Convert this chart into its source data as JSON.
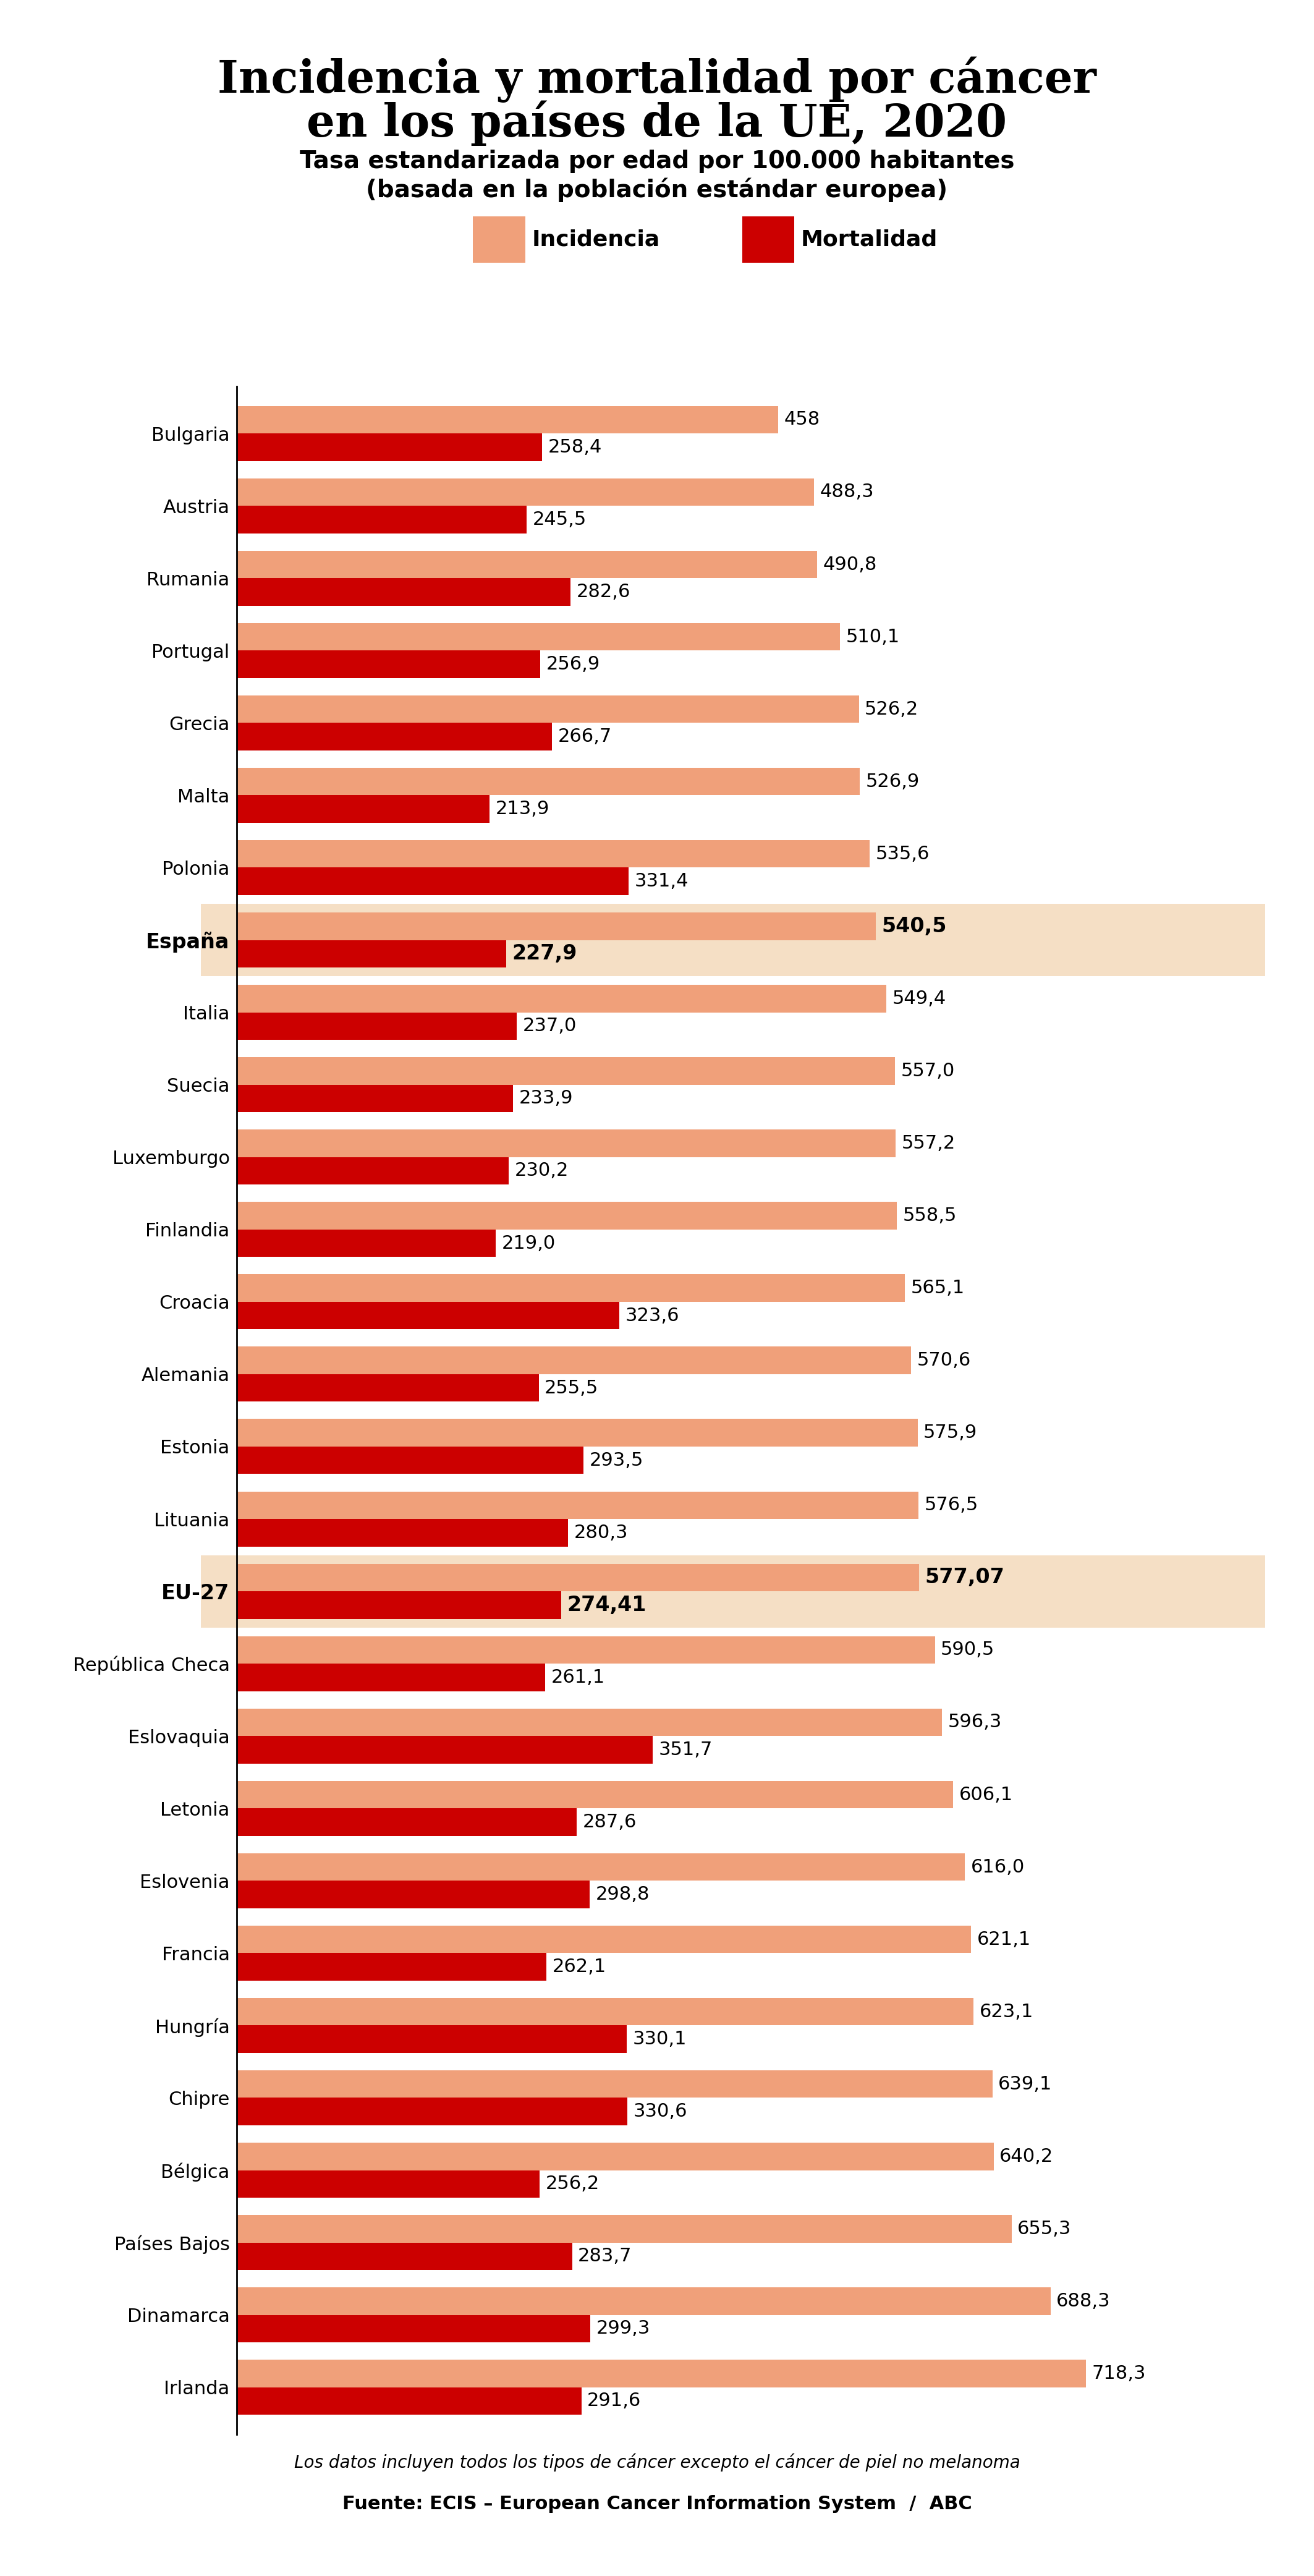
{
  "title_line1": "Incidencia y mortalidad por cáncer",
  "title_line2": "en los países de la UE, 2020",
  "subtitle_line1": "Tasa estandarizada por edad por 100.000 habitantes",
  "subtitle_line2": "(basada en la población estándar europea)",
  "legend_incidencia": "Incidencia",
  "legend_mortalidad": "Mortalidad",
  "footnote": "Los datos incluyen todos los tipos de cáncer excepto el cáncer de piel no melanoma",
  "source_bold": "Fuente:",
  "source_normal": " ECIS – European Cancer Information System  /  ",
  "source_bold2": "ABC",
  "countries": [
    "Bulgaria",
    "Austria",
    "Rumania",
    "Portugal",
    "Grecia",
    "Malta",
    "Polonia",
    "España",
    "Italia",
    "Suecia",
    "Luxemburgo",
    "Finlandia",
    "Croacia",
    "Alemania",
    "Estonia",
    "Lituania",
    "EU-27",
    "República Checa",
    "Eslovaquia",
    "Letonia",
    "Eslovenia",
    "Francia",
    "Hungría",
    "Chipre",
    "Bélgica",
    "Países Bajos",
    "Dinamarca",
    "Irlanda"
  ],
  "incidencia": [
    458,
    488.3,
    490.8,
    510.1,
    526.2,
    526.9,
    535.6,
    540.5,
    549.4,
    557.0,
    557.2,
    558.5,
    565.1,
    570.6,
    575.9,
    576.5,
    577.07,
    590.5,
    596.3,
    606.1,
    616.0,
    621.1,
    623.1,
    639.1,
    640.2,
    655.3,
    688.3,
    718.3
  ],
  "mortalidad": [
    258.4,
    245.5,
    282.6,
    256.9,
    266.7,
    213.9,
    331.4,
    227.9,
    237.0,
    233.9,
    230.2,
    219.0,
    323.6,
    255.5,
    293.5,
    280.3,
    274.41,
    261.1,
    351.7,
    287.6,
    298.8,
    262.1,
    330.1,
    330.6,
    256.2,
    283.7,
    299.3,
    291.6
  ],
  "incidencia_labels": [
    "458",
    "488,3",
    "490,8",
    "510,1",
    "526,2",
    "526,9",
    "535,6",
    "540,5",
    "549,4",
    "557,0",
    "557,2",
    "558,5",
    "565,1",
    "570,6",
    "575,9",
    "576,5",
    "577,07",
    "590,5",
    "596,3",
    "606,1",
    "616,0",
    "621,1",
    "623,1",
    "639,1",
    "640,2",
    "655,3",
    "688,3",
    "718,3"
  ],
  "mortalidad_labels": [
    "258,4",
    "245,5",
    "282,6",
    "256,9",
    "266,7",
    "213,9",
    "331,4",
    "227,9",
    "237,0",
    "233,9",
    "230,2",
    "219,0",
    "323,6",
    "255,5",
    "293,5",
    "280,3",
    "274,41",
    "261,1",
    "351,7",
    "287,6",
    "298,8",
    "262,1",
    "330,1",
    "330,6",
    "256,2",
    "283,7",
    "299,3",
    "291,6"
  ],
  "highlight_indices": [
    7,
    16
  ],
  "highlight_color": "#f5dfc5",
  "incidencia_color": "#f0a07a",
  "mortalidad_color": "#cc0000",
  "bar_height": 0.38,
  "background_color": "#ffffff",
  "title_fontsize": 52,
  "subtitle_fontsize": 28,
  "label_fontsize": 22,
  "tick_fontsize": 22,
  "legend_fontsize": 26,
  "footnote_fontsize": 20,
  "source_fontsize": 22
}
